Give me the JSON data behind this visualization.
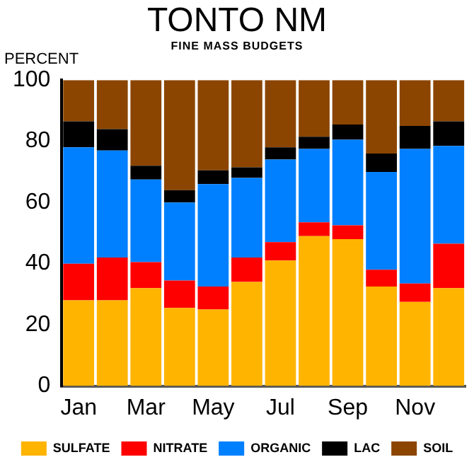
{
  "chart_data": {
    "type": "bar",
    "title": "TONTO NM",
    "subtitle": "FINE MASS BUDGETS",
    "ylabel": "PERCENT",
    "categories": [
      "Jan",
      null,
      "Mar",
      null,
      "May",
      null,
      "Jul",
      null,
      "Sep",
      null,
      "Nov",
      null
    ],
    "stacked": true,
    "ylim": [
      0,
      100
    ],
    "yticks": [
      0,
      20,
      40,
      60,
      80,
      100
    ],
    "grid": false,
    "legend": "bottom",
    "series": [
      {
        "name": "SULFATE",
        "color": "#ffb400",
        "values": [
          28,
          28,
          32,
          25.5,
          25,
          34,
          41,
          49,
          48,
          32.5,
          27.5,
          32
        ]
      },
      {
        "name": "NITRATE",
        "color": "#ff0000",
        "values": [
          12,
          14,
          8.5,
          9,
          7.5,
          8,
          6,
          4.5,
          4.5,
          5.5,
          6,
          14.5
        ]
      },
      {
        "name": "ORGANIC",
        "color": "#0080ff",
        "values": [
          38,
          35,
          27,
          25.5,
          33.5,
          26,
          27,
          24,
          28,
          32,
          44,
          32
        ]
      },
      {
        "name": "LAC",
        "color": "#000000",
        "values": [
          8.5,
          7,
          4.5,
          4,
          4.5,
          3.5,
          4,
          4,
          5,
          6,
          7.5,
          8
        ]
      },
      {
        "name": "SOIL",
        "color": "#8b4500",
        "values": [
          13.5,
          16,
          28,
          36,
          29.5,
          28.5,
          22,
          18.5,
          14.5,
          24,
          15,
          13.5
        ]
      }
    ]
  }
}
